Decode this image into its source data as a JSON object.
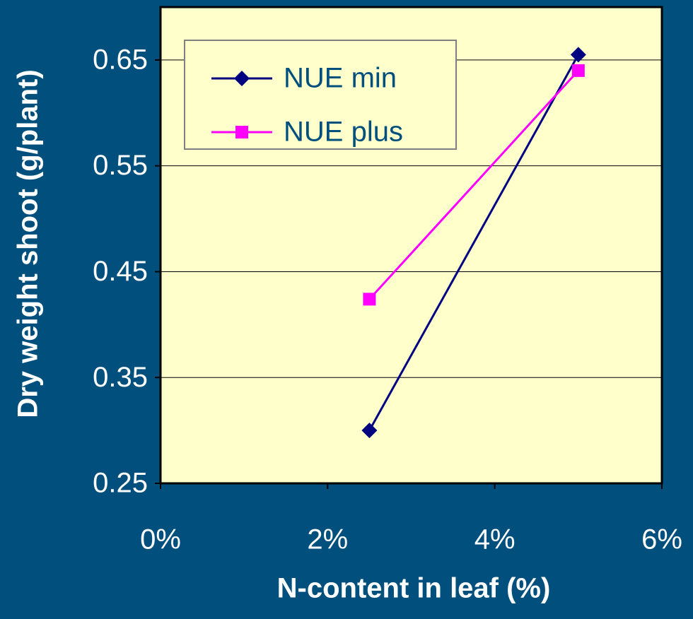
{
  "chart_data": {
    "type": "line",
    "x_label": "N-content in leaf (%)",
    "y_label": "Dry weight shoot (g/plant)",
    "x": [
      2.5,
      5
    ],
    "series": [
      {
        "name": "NUE min",
        "color": "#000080",
        "marker": "diamond",
        "values": [
          0.3,
          0.655
        ]
      },
      {
        "name": "NUE plus",
        "color": "#ff00ff",
        "marker": "square",
        "values": [
          0.424,
          0.64
        ]
      }
    ],
    "xlim": [
      0,
      6
    ],
    "xticks": [
      {
        "value": 0,
        "label": "0%"
      },
      {
        "value": 2,
        "label": "2%"
      },
      {
        "value": 4,
        "label": "4%"
      },
      {
        "value": 6,
        "label": "6%"
      }
    ],
    "ylim": [
      0.25,
      0.7
    ],
    "yticks": [
      0.25,
      0.35,
      0.45,
      0.55,
      0.65
    ],
    "grid": true,
    "legend": "upper left"
  }
}
